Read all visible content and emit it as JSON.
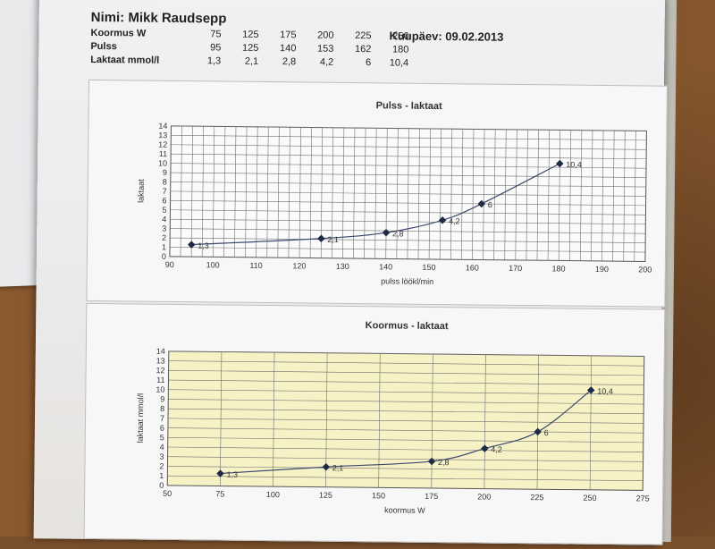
{
  "header": {
    "name": "Nimi: Mikk Raudsepp",
    "date": "Kuupäev: 09.02.2013"
  },
  "table": {
    "rows": [
      {
        "label": "Koormus W",
        "values": [
          "75",
          "125",
          "175",
          "200",
          "225",
          "250"
        ]
      },
      {
        "label": "Pulss",
        "values": [
          "95",
          "125",
          "140",
          "153",
          "162",
          "180"
        ]
      },
      {
        "label": "Laktaat mmol/l",
        "values": [
          "1,3",
          "2,1",
          "2,8",
          "4,2",
          "6",
          "10,4"
        ]
      }
    ]
  },
  "colors": {
    "chart1_plot_bg": "#fafafa",
    "chart2_plot_bg": "#f6f2c6",
    "gridline": "#6f6f6f",
    "series": "#3c4a6e"
  },
  "chart_data": [
    {
      "type": "line",
      "title": "Pulss - laktaat",
      "xlabel": "pulss löökl/min",
      "ylabel": "laktaat",
      "xlim": [
        90,
        200
      ],
      "ylim": [
        0,
        14
      ],
      "x_ticks": [
        "90",
        "100",
        "110",
        "120",
        "130",
        "140",
        "150",
        "160",
        "170",
        "180",
        "190",
        "200"
      ],
      "y_ticks": [
        "0",
        "1",
        "2",
        "3",
        "4",
        "5",
        "6",
        "7",
        "8",
        "9",
        "10",
        "11",
        "12",
        "13",
        "14"
      ],
      "grid": "fine, every 2.5 bpm and 1 mmol/l",
      "series": [
        {
          "x": [
            95,
            125,
            140,
            153,
            162,
            180
          ],
          "y": [
            1.3,
            2.1,
            2.8,
            4.2,
            6,
            10.4
          ],
          "labels": [
            "1,3",
            "2,1",
            "2,8",
            "4,2",
            "6",
            "10,4"
          ]
        }
      ]
    },
    {
      "type": "line",
      "title": "Koormus - laktaat",
      "xlabel": "koormus W",
      "ylabel": "laktaat mmol/l",
      "xlim": [
        50,
        275
      ],
      "ylim": [
        0,
        14
      ],
      "x_ticks": [
        "50",
        "75",
        "100",
        "125",
        "150",
        "175",
        "200",
        "225",
        "250",
        "275"
      ],
      "y_ticks": [
        "0",
        "1",
        "2",
        "3",
        "4",
        "5",
        "6",
        "7",
        "8",
        "9",
        "10",
        "11",
        "12",
        "13",
        "14"
      ],
      "grid": "horizontal every 1 mmol/l, vertical every 25 W",
      "series": [
        {
          "x": [
            75,
            125,
            175,
            200,
            225,
            250
          ],
          "y": [
            1.3,
            2.1,
            2.8,
            4.2,
            6,
            10.4
          ],
          "labels": [
            "1,3",
            "2,1",
            "2,8",
            "4,2",
            "6",
            "10,4"
          ]
        }
      ]
    }
  ]
}
